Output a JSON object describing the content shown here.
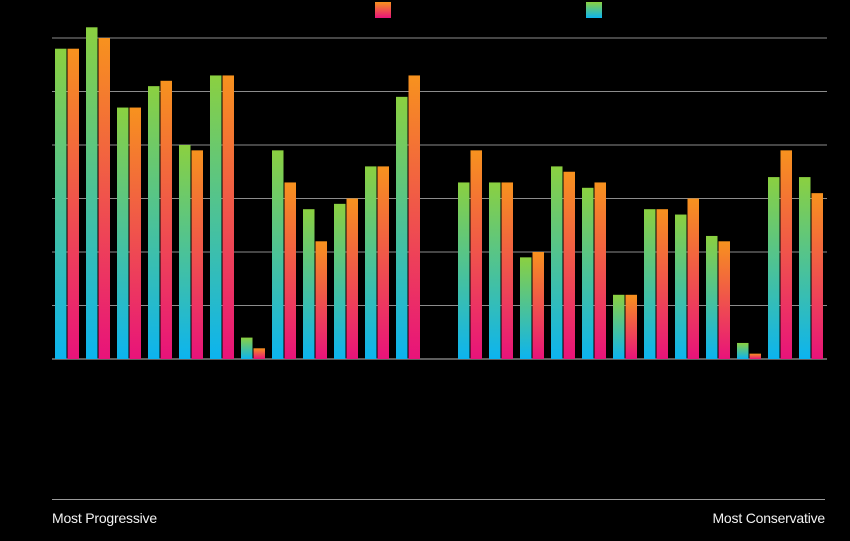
{
  "chart_data": {
    "type": "bar",
    "legend_placement": "top",
    "grid": true,
    "ylim": [
      0,
      60
    ],
    "gridlines": [
      0,
      10,
      20,
      30,
      40,
      50,
      60
    ],
    "series": [
      {
        "gradient": [
          "#0cb4ef",
          "#8bd040"
        ],
        "values": [
          58,
          62,
          47,
          51,
          40,
          53,
          4,
          39,
          28,
          29,
          36,
          49,
          33,
          33,
          19,
          36,
          32,
          12,
          28,
          27,
          23,
          3,
          34,
          34
        ]
      },
      {
        "gradient": [
          "#e8137a",
          "#f7921e"
        ],
        "values": [
          58,
          60,
          47,
          52,
          39,
          53,
          2,
          33,
          22,
          30,
          36,
          53,
          39,
          33,
          20,
          35,
          33,
          12,
          28,
          30,
          22,
          1,
          39,
          31
        ]
      }
    ],
    "groups_left": 12,
    "groups_right": 12
  },
  "scale": {
    "left_label": "Most Progressive",
    "right_label": "Most Conservative"
  }
}
